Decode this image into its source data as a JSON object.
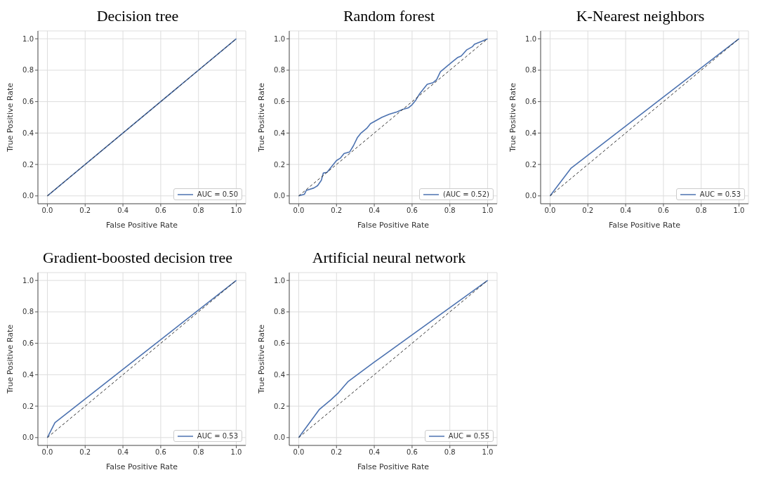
{
  "chart_data": [
    {
      "type": "line",
      "title": "Decision tree",
      "xlabel": "False Positive Rate",
      "ylabel": "True Positive Rate",
      "xlim": [
        -0.05,
        1.05
      ],
      "ylim": [
        -0.05,
        1.05
      ],
      "xticks": [
        {
          "value": 0,
          "label": "0.0"
        },
        {
          "value": 0.2,
          "label": "0.2"
        },
        {
          "value": 0.4,
          "label": "0.4"
        },
        {
          "value": 0.6,
          "label": "0.6"
        },
        {
          "value": 0.8,
          "label": "0.8"
        },
        {
          "value": 1,
          "label": "1.0"
        }
      ],
      "yticks": [
        {
          "value": 0,
          "label": "0.0"
        },
        {
          "value": 0.2,
          "label": "0.2"
        },
        {
          "value": 0.4,
          "label": "0.4"
        },
        {
          "value": 0.6,
          "label": "0.6"
        },
        {
          "value": 0.8,
          "label": "0.8"
        },
        {
          "value": 1,
          "label": "1.0"
        }
      ],
      "grid": true,
      "legend": "bottom right",
      "series": [
        {
          "name": "AUC = 0.50",
          "color": "#4c72b0",
          "x": [
            0,
            1
          ],
          "values": [
            0,
            1
          ]
        },
        {
          "color": "#333333",
          "line_style": "dashed",
          "x": [
            0,
            1
          ],
          "values": [
            0,
            1
          ]
        }
      ]
    },
    {
      "type": "line",
      "title": "Random forest",
      "xlabel": "False Positive Rate",
      "ylabel": "True Positive Rate",
      "xlim": [
        -0.05,
        1.05
      ],
      "ylim": [
        -0.05,
        1.05
      ],
      "xticks": [
        {
          "value": 0,
          "label": "0.0"
        },
        {
          "value": 0.2,
          "label": "0.2"
        },
        {
          "value": 0.4,
          "label": "0.4"
        },
        {
          "value": 0.6,
          "label": "0.6"
        },
        {
          "value": 0.8,
          "label": "0.8"
        },
        {
          "value": 1,
          "label": "1.0"
        }
      ],
      "yticks": [
        {
          "value": 0,
          "label": "0.0"
        },
        {
          "value": 0.2,
          "label": "0.2"
        },
        {
          "value": 0.4,
          "label": "0.4"
        },
        {
          "value": 0.6,
          "label": "0.6"
        },
        {
          "value": 0.8,
          "label": "0.8"
        },
        {
          "value": 1,
          "label": "1.0"
        }
      ],
      "grid": true,
      "legend": "bottom right",
      "series": [
        {
          "name": "(AUC = 0.52)",
          "color": "#4c72b0",
          "x": [
            0,
            0.03,
            0.04,
            0.08,
            0.1,
            0.12,
            0.13,
            0.15,
            0.17,
            0.2,
            0.22,
            0.24,
            0.27,
            0.29,
            0.31,
            0.33,
            0.36,
            0.38,
            0.41,
            0.44,
            0.48,
            0.52,
            0.55,
            0.58,
            0.6,
            0.62,
            0.64,
            0.66,
            0.68,
            0.71,
            0.73,
            0.75,
            0.78,
            0.81,
            0.84,
            0.86,
            0.89,
            0.92,
            0.93,
            0.96,
            1
          ],
          "values": [
            0,
            0.01,
            0.035,
            0.05,
            0.065,
            0.1,
            0.145,
            0.15,
            0.18,
            0.225,
            0.24,
            0.27,
            0.28,
            0.32,
            0.37,
            0.4,
            0.43,
            0.46,
            0.48,
            0.5,
            0.52,
            0.535,
            0.55,
            0.56,
            0.58,
            0.61,
            0.65,
            0.68,
            0.71,
            0.72,
            0.74,
            0.79,
            0.82,
            0.85,
            0.88,
            0.89,
            0.93,
            0.95,
            0.965,
            0.98,
            1
          ]
        },
        {
          "color": "#333333",
          "line_style": "dashed",
          "x": [
            0,
            1
          ],
          "values": [
            0,
            1
          ]
        }
      ]
    },
    {
      "type": "line",
      "title": "K-Nearest neighbors",
      "xlabel": "False Positive Rate",
      "ylabel": "True Positive Rate",
      "xlim": [
        -0.05,
        1.05
      ],
      "ylim": [
        -0.05,
        1.05
      ],
      "xticks": [
        {
          "value": 0,
          "label": "0.0"
        },
        {
          "value": 0.2,
          "label": "0.2"
        },
        {
          "value": 0.4,
          "label": "0.4"
        },
        {
          "value": 0.6,
          "label": "0.6"
        },
        {
          "value": 0.8,
          "label": "0.8"
        },
        {
          "value": 1,
          "label": "1.0"
        }
      ],
      "yticks": [
        {
          "value": 0,
          "label": "0.0"
        },
        {
          "value": 0.2,
          "label": "0.2"
        },
        {
          "value": 0.4,
          "label": "0.4"
        },
        {
          "value": 0.6,
          "label": "0.6"
        },
        {
          "value": 0.8,
          "label": "0.8"
        },
        {
          "value": 1,
          "label": "1.0"
        }
      ],
      "grid": true,
      "legend": "bottom right",
      "series": [
        {
          "name": "AUC = 0.53",
          "color": "#4c72b0",
          "x": [
            0,
            0.11,
            1
          ],
          "values": [
            0,
            0.175,
            1
          ]
        },
        {
          "color": "#333333",
          "line_style": "dashed",
          "x": [
            0,
            1
          ],
          "values": [
            0,
            1
          ]
        }
      ]
    },
    {
      "type": "line",
      "title": "Gradient-boosted decision tree",
      "xlabel": "False Positive Rate",
      "ylabel": "True Positive Rate",
      "xlim": [
        -0.05,
        1.05
      ],
      "ylim": [
        -0.05,
        1.05
      ],
      "xticks": [
        {
          "value": 0,
          "label": "0.0"
        },
        {
          "value": 0.2,
          "label": "0.2"
        },
        {
          "value": 0.4,
          "label": "0.4"
        },
        {
          "value": 0.6,
          "label": "0.6"
        },
        {
          "value": 0.8,
          "label": "0.8"
        },
        {
          "value": 1,
          "label": "1.0"
        }
      ],
      "yticks": [
        {
          "value": 0,
          "label": "0.0"
        },
        {
          "value": 0.2,
          "label": "0.2"
        },
        {
          "value": 0.4,
          "label": "0.4"
        },
        {
          "value": 0.6,
          "label": "0.6"
        },
        {
          "value": 0.8,
          "label": "0.8"
        },
        {
          "value": 1,
          "label": "1.0"
        }
      ],
      "grid": true,
      "legend": "bottom right",
      "series": [
        {
          "name": "AUC = 0.53",
          "color": "#4c72b0",
          "x": [
            0,
            0.04,
            1
          ],
          "values": [
            0,
            0.095,
            1
          ]
        },
        {
          "color": "#333333",
          "line_style": "dashed",
          "x": [
            0,
            1
          ],
          "values": [
            0,
            1
          ]
        }
      ]
    },
    {
      "type": "line",
      "title": "Artificial neural network",
      "xlabel": "False Positive Rate",
      "ylabel": "True Positive Rate",
      "xlim": [
        -0.05,
        1.05
      ],
      "ylim": [
        -0.05,
        1.05
      ],
      "xticks": [
        {
          "value": 0,
          "label": "0.0"
        },
        {
          "value": 0.2,
          "label": "0.2"
        },
        {
          "value": 0.4,
          "label": "0.4"
        },
        {
          "value": 0.6,
          "label": "0.6"
        },
        {
          "value": 0.8,
          "label": "0.8"
        },
        {
          "value": 1,
          "label": "1.0"
        }
      ],
      "yticks": [
        {
          "value": 0,
          "label": "0.0"
        },
        {
          "value": 0.2,
          "label": "0.2"
        },
        {
          "value": 0.4,
          "label": "0.4"
        },
        {
          "value": 0.6,
          "label": "0.6"
        },
        {
          "value": 0.8,
          "label": "0.8"
        },
        {
          "value": 1,
          "label": "1.0"
        }
      ],
      "grid": true,
      "legend": "bottom right",
      "series": [
        {
          "name": "AUC = 0.55",
          "color": "#4c72b0",
          "x": [
            0,
            0.11,
            0.17,
            0.21,
            0.26,
            0.4,
            1
          ],
          "values": [
            0,
            0.18,
            0.24,
            0.285,
            0.355,
            0.48,
            1
          ]
        },
        {
          "color": "#333333",
          "line_style": "dashed",
          "x": [
            0,
            1
          ],
          "values": [
            0,
            1
          ]
        }
      ]
    }
  ]
}
